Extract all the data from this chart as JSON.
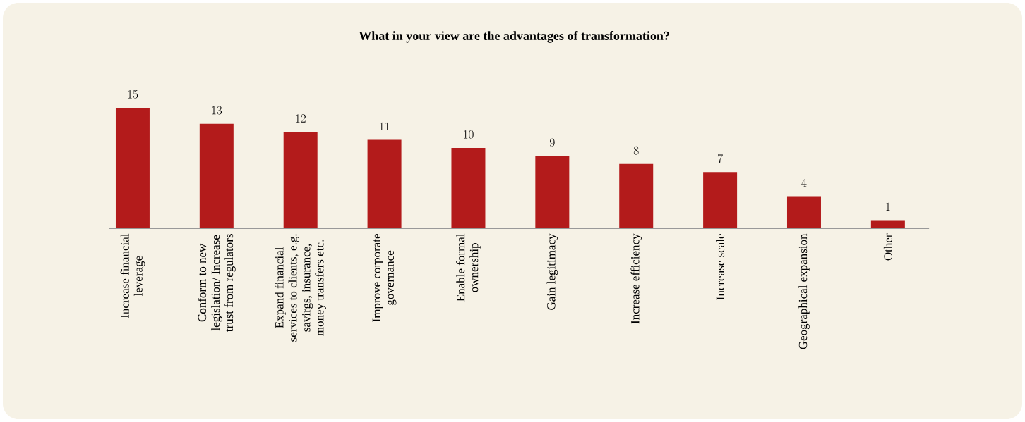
{
  "chart_data": {
    "type": "bar",
    "title": "What in your view are the advantages of transformation?",
    "categories": [
      "Increase financial leverage",
      "Conform to new legislation/ Increase trust from regulators",
      "Expand financial services to clients, e.g. savirgs, insurance, money transfers etc.",
      "Improve corporate governance",
      "Enable formal ownership",
      "Gain legitimacy",
      "Increase efficiency",
      "Increase scale",
      "Geographical expansion",
      "Other"
    ],
    "values": [
      15,
      13,
      12,
      11,
      10,
      9,
      8,
      7,
      4,
      1
    ],
    "color": "#b31b1b",
    "data_labels": true
  }
}
